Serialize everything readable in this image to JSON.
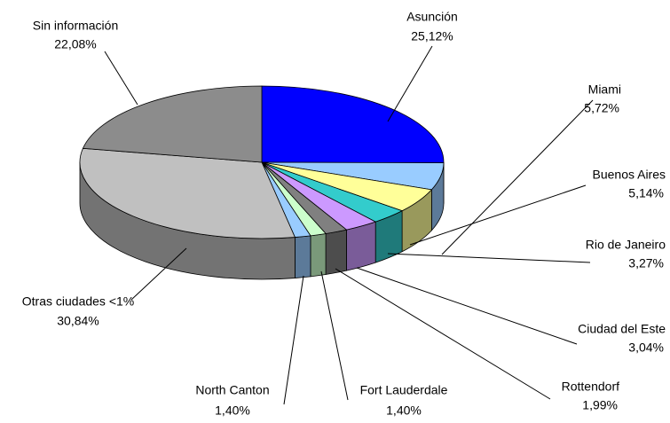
{
  "chart_data": {
    "type": "pie",
    "categories": [
      "Asunción",
      "Miami",
      "Buenos Aires",
      "Rio de Janeiro",
      "Ciudad del Este",
      "Rottendorf",
      "Fort Lauderdale",
      "North Canton",
      "Otras ciudades <1%",
      "Sin información"
    ],
    "values": [
      25.12,
      5.72,
      5.14,
      3.27,
      3.04,
      1.99,
      1.4,
      1.4,
      30.84,
      22.08
    ],
    "value_labels": [
      "25,12%",
      "5,72%",
      "5,14%",
      "3,27%",
      "3,04%",
      "1,99%",
      "1,40%",
      "1,40%",
      "30,84%",
      "22,08%"
    ],
    "colors": [
      "#0000ff",
      "#99ccff",
      "#ffff99",
      "#33cccc",
      "#cc99ff",
      "#808080",
      "#ccffcc",
      "#99ccff",
      "#c0c0c0",
      "#8c8c8c"
    ]
  }
}
